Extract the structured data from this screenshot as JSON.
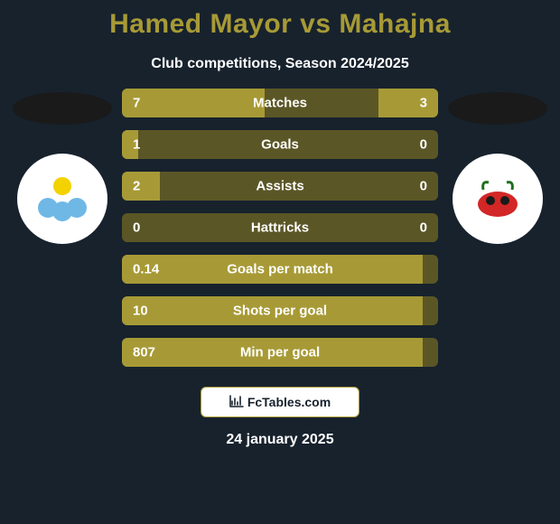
{
  "background_color": "#17222d",
  "title": {
    "text": "Hamed Mayor vs Mahajna",
    "color": "#a79a36",
    "fontsize": 30
  },
  "subtitle": {
    "text": "Club competitions, Season 2024/2025",
    "color": "#ffffff",
    "fontsize": 16
  },
  "left_club": {
    "disc_color": "#1a1a1a",
    "badge_bg": "#ffffff",
    "badge_accent1": "#f3d200",
    "badge_accent2": "#6fb8e6"
  },
  "right_club": {
    "disc_color": "#1a1a1a",
    "badge_bg": "#ffffff",
    "badge_accent1": "#d32626",
    "badge_accent2": "#1e6f1e"
  },
  "bars": {
    "track_color": "#5b5626",
    "left_fill": "#a79a36",
    "right_fill": "#a79a36",
    "label_color": "#ffffff",
    "value_color": "#ffffff",
    "height": 32,
    "items": [
      {
        "label": "Matches",
        "left_val": "7",
        "right_val": "3",
        "left_pct": 45,
        "right_pct": 19
      },
      {
        "label": "Goals",
        "left_val": "1",
        "right_val": "0",
        "left_pct": 5,
        "right_pct": 0
      },
      {
        "label": "Assists",
        "left_val": "2",
        "right_val": "0",
        "left_pct": 12,
        "right_pct": 0
      },
      {
        "label": "Hattricks",
        "left_val": "0",
        "right_val": "0",
        "left_pct": 0,
        "right_pct": 0
      },
      {
        "label": "Goals per match",
        "left_val": "0.14",
        "right_val": "",
        "left_pct": 95,
        "right_pct": 0
      },
      {
        "label": "Shots per goal",
        "left_val": "10",
        "right_val": "",
        "left_pct": 95,
        "right_pct": 0
      },
      {
        "label": "Min per goal",
        "left_val": "807",
        "right_val": "",
        "left_pct": 95,
        "right_pct": 0
      }
    ]
  },
  "site": {
    "text": "FcTables.com",
    "pill_bg": "#ffffff",
    "pill_border": "#a79a36",
    "text_color": "#17222d"
  },
  "date": {
    "text": "24 january 2025",
    "color": "#ffffff"
  }
}
